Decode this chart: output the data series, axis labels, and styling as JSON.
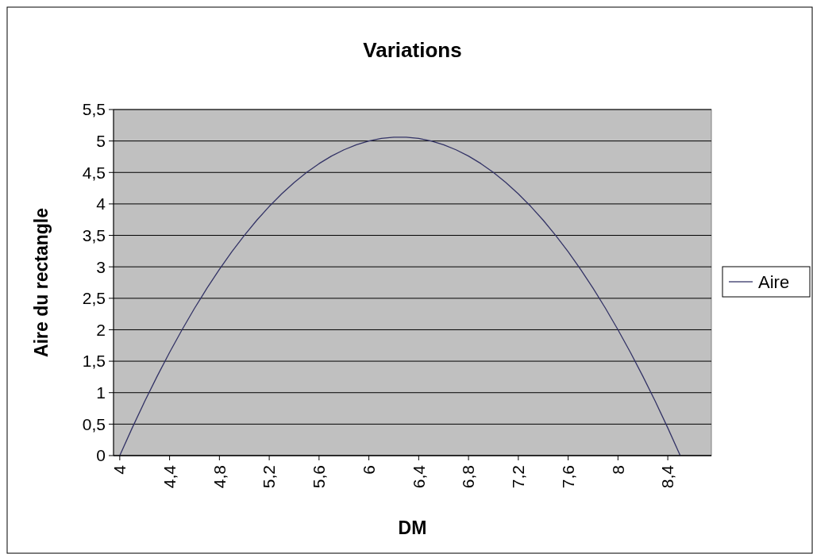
{
  "chart_data": {
    "type": "line",
    "title": "Variations",
    "xlabel": "DM",
    "ylabel": "Aire du rectangle",
    "x": [
      4.0,
      4.1,
      4.2,
      4.3,
      4.4,
      4.5,
      4.6,
      4.7,
      4.8,
      4.9,
      5.0,
      5.1,
      5.2,
      5.3,
      5.4,
      5.5,
      5.6,
      5.7,
      5.8,
      5.9,
      6.0,
      6.1,
      6.2,
      6.3,
      6.4,
      6.5,
      6.6,
      6.7,
      6.8,
      6.9,
      7.0,
      7.1,
      7.2,
      7.3,
      7.4,
      7.5,
      7.6,
      7.7,
      7.8,
      7.9,
      8.0,
      8.1,
      8.2,
      8.3,
      8.4,
      8.5
    ],
    "series": [
      {
        "name": "Aire",
        "color": "#333366",
        "values": [
          0,
          0.44,
          0.86,
          1.26,
          1.64,
          2,
          2.34,
          2.66,
          2.96,
          3.24,
          3.5,
          3.74,
          3.96,
          4.16,
          4.34,
          4.5,
          4.64,
          4.76,
          4.86,
          4.94,
          5,
          5.04,
          5.06,
          5.06,
          5.04,
          5,
          4.94,
          4.86,
          4.76,
          4.64,
          4.5,
          4.34,
          4.16,
          3.96,
          3.74,
          3.5,
          3.24,
          2.96,
          2.66,
          2.34,
          2,
          1.64,
          1.26,
          0.86,
          0.44,
          0
        ]
      }
    ],
    "xlim": [
      3.95,
      8.75
    ],
    "xticks": [
      4,
      {
        "value": 4.4,
        "label": "4,4"
      },
      {
        "value": 4.8,
        "label": "4,8"
      },
      {
        "value": 5.2,
        "label": "5,2"
      },
      {
        "value": 5.6,
        "label": "5,6"
      },
      6,
      {
        "value": 6.4,
        "label": "6,4"
      },
      {
        "value": 6.8,
        "label": "6,8"
      },
      {
        "value": 7.2,
        "label": "7,2"
      },
      {
        "value": 7.6,
        "label": "7,6"
      },
      8,
      {
        "value": 8.4,
        "label": "8,4"
      }
    ],
    "ylim": [
      0,
      5.5
    ],
    "yticks": [
      0,
      {
        "value": 0.5,
        "label": "0,5"
      },
      1,
      {
        "value": 1.5,
        "label": "1,5"
      },
      2,
      {
        "value": 2.5,
        "label": "2,5"
      },
      3,
      {
        "value": 3.5,
        "label": "3,5"
      },
      4,
      {
        "value": 4.5,
        "label": "4,5"
      },
      5,
      {
        "value": 5.5,
        "label": "5,5"
      }
    ],
    "grid": "y",
    "legend": "right"
  }
}
